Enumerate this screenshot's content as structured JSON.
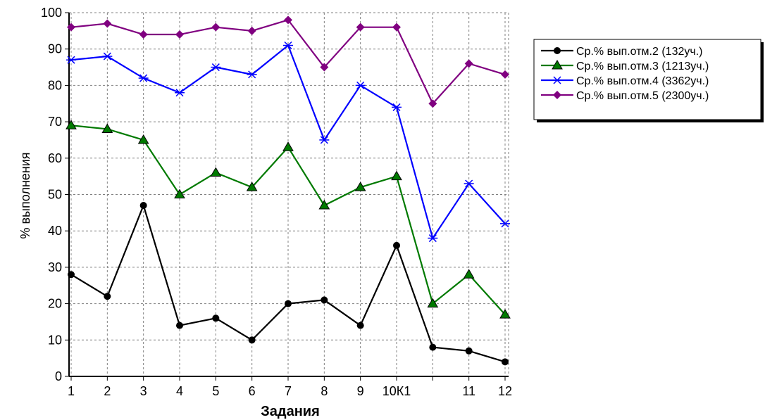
{
  "chart_data": {
    "type": "line",
    "xlabel": "Задания",
    "ylabel": "% выполнения",
    "ylim": [
      0,
      100
    ],
    "yticks": [
      0,
      10,
      20,
      30,
      40,
      50,
      60,
      70,
      80,
      90,
      100
    ],
    "categories": [
      "1",
      "2",
      "3",
      "4",
      "5",
      "6",
      "7",
      "8",
      "9",
      "10К1",
      "",
      "11",
      "12"
    ],
    "grid": true,
    "legend_position": "top-right",
    "series": [
      {
        "name": "Ср.% вып.отм.2 (132уч.)",
        "color": "#000000",
        "marker": "circle",
        "values": [
          28,
          22,
          47,
          14,
          16,
          10,
          20,
          21,
          14,
          36,
          8,
          7,
          4
        ]
      },
      {
        "name": "Ср.% вып.отм.3 (1213уч.)",
        "color": "#007a00",
        "marker": "triangle",
        "values": [
          69,
          68,
          65,
          50,
          56,
          52,
          63,
          47,
          52,
          55,
          20,
          28,
          17
        ]
      },
      {
        "name": "Ср.% вып.отм.4 (3362уч.)",
        "color": "#0000ff",
        "marker": "star",
        "values": [
          87,
          88,
          82,
          78,
          85,
          83,
          91,
          65,
          80,
          74,
          38,
          53,
          42
        ]
      },
      {
        "name": "Ср.% вып.отм.5 (2300уч.)",
        "color": "#800080",
        "marker": "diamond",
        "values": [
          96,
          97,
          94,
          94,
          96,
          95,
          98,
          85,
          96,
          96,
          75,
          86,
          83
        ]
      }
    ]
  }
}
